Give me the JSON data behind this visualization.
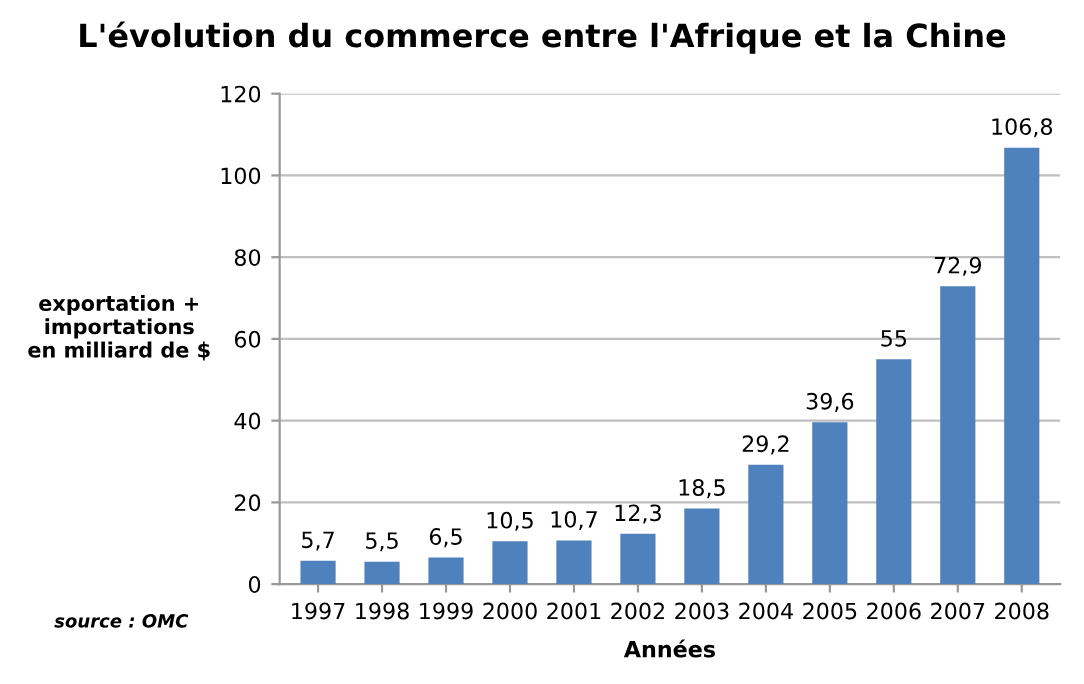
{
  "chart_data": {
    "type": "bar",
    "title": "L'évolution du commerce entre l'Afrique et la Chine",
    "xlabel": "Années",
    "ylabel": "exportation +\nimportations\nen milliard de $",
    "categories": [
      "1997",
      "1998",
      "1999",
      "2000",
      "2001",
      "2002",
      "2003",
      "2004",
      "2005",
      "2006",
      "2007",
      "2008"
    ],
    "values": [
      5.7,
      5.5,
      6.5,
      10.5,
      10.7,
      12.3,
      18.5,
      29.2,
      39.6,
      55,
      72.9,
      106.8
    ],
    "value_labels": [
      "5,7",
      "5,5",
      "6,5",
      "10,5",
      "10,7",
      "12,3",
      "18,5",
      "29,2",
      "39,6",
      "55",
      "72,9",
      "106,8"
    ],
    "color": "#4f81bd",
    "ylim": [
      0,
      120
    ],
    "yticks": [
      0,
      20,
      40,
      60,
      80,
      100,
      120
    ],
    "grid": "y",
    "legend": false,
    "annotations": [
      "source : OMC"
    ]
  }
}
